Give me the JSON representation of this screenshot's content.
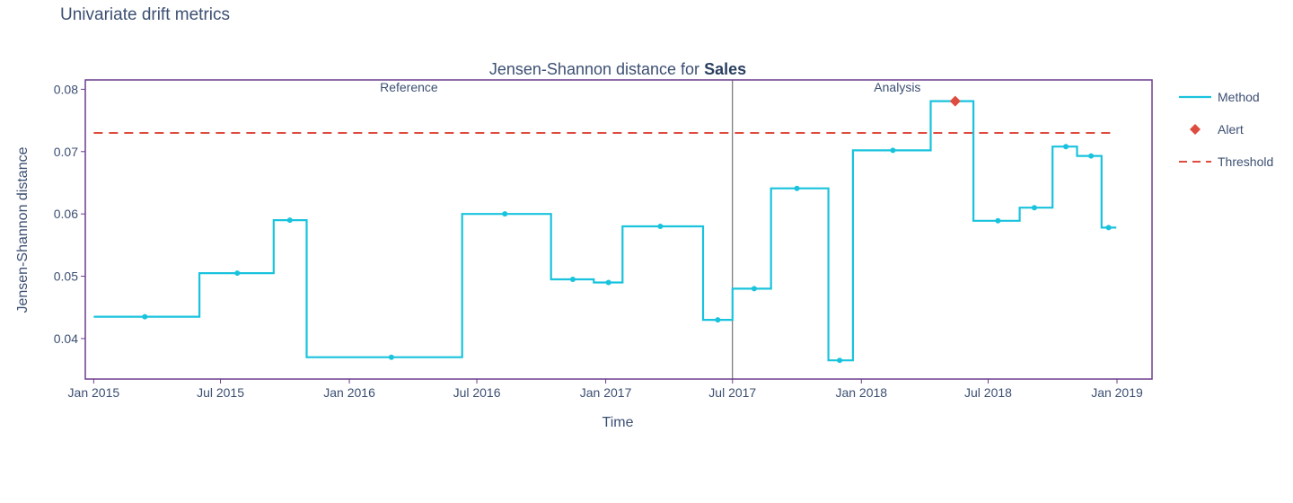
{
  "page": {
    "title": "Univariate drift metrics"
  },
  "chart_data": {
    "type": "line",
    "title_prefix": "Jensen-Shannon distance for ",
    "title_bold": "Sales",
    "xlabel": "Time",
    "ylabel": "Jensen-Shannon distance",
    "xlim": [
      "2014-12-20",
      "2019-02-20"
    ],
    "ylim": [
      0.0335,
      0.0815
    ],
    "yticks": [
      0.04,
      0.05,
      0.06,
      0.07,
      0.08
    ],
    "ytick_labels": [
      "0.04",
      "0.05",
      "0.06",
      "0.07",
      "0.08"
    ],
    "xticks": [
      "2015-01-01",
      "2015-07-01",
      "2016-01-01",
      "2016-07-01",
      "2017-01-01",
      "2017-07-01",
      "2018-01-01",
      "2018-07-01",
      "2019-01-01"
    ],
    "xtick_labels": [
      "Jan 2015",
      "Jul 2015",
      "Jan 2016",
      "Jul 2016",
      "Jan 2017",
      "Jul 2017",
      "Jan 2018",
      "Jul 2018",
      "Jan 2019"
    ],
    "grid": false,
    "legend_position": "right",
    "threshold": 0.073,
    "threshold_range": [
      "2015-01-01",
      "2018-12-31"
    ],
    "period_split": "2017-07-01",
    "period_labels": [
      "Reference",
      "Analysis"
    ],
    "series": [
      {
        "name": "Method",
        "points": [
          {
            "start": "2015-01-01",
            "end": "2015-06-01",
            "mid": "2015-03-15",
            "y": 0.0435,
            "alert": false
          },
          {
            "start": "2015-06-01",
            "end": "2015-09-15",
            "mid": "2015-07-25",
            "y": 0.0505,
            "alert": false
          },
          {
            "start": "2015-09-15",
            "end": "2015-11-01",
            "mid": "2015-10-08",
            "y": 0.059,
            "alert": false
          },
          {
            "start": "2015-11-01",
            "end": "2016-06-10",
            "mid": "2016-03-01",
            "y": 0.037,
            "alert": false
          },
          {
            "start": "2016-06-10",
            "end": "2016-10-15",
            "mid": "2016-08-10",
            "y": 0.06,
            "alert": false
          },
          {
            "start": "2016-10-15",
            "end": "2016-12-15",
            "mid": "2016-11-15",
            "y": 0.0495,
            "alert": false
          },
          {
            "start": "2016-12-15",
            "end": "2017-01-25",
            "mid": "2017-01-05",
            "y": 0.049,
            "alert": false
          },
          {
            "start": "2017-01-25",
            "end": "2017-05-20",
            "mid": "2017-03-20",
            "y": 0.058,
            "alert": false
          },
          {
            "start": "2017-05-20",
            "end": "2017-07-01",
            "mid": "2017-06-10",
            "y": 0.043,
            "alert": false
          },
          {
            "start": "2017-07-01",
            "end": "2017-08-25",
            "mid": "2017-08-01",
            "y": 0.048,
            "alert": false
          },
          {
            "start": "2017-08-25",
            "end": "2017-11-15",
            "mid": "2017-10-01",
            "y": 0.0641,
            "alert": false
          },
          {
            "start": "2017-11-15",
            "end": "2017-12-20",
            "mid": "2017-12-01",
            "y": 0.0365,
            "alert": false
          },
          {
            "start": "2017-12-20",
            "end": "2018-04-10",
            "mid": "2018-02-15",
            "y": 0.0702,
            "alert": false
          },
          {
            "start": "2018-04-10",
            "end": "2018-06-10",
            "mid": "2018-05-15",
            "y": 0.0781,
            "alert": true
          },
          {
            "start": "2018-06-10",
            "end": "2018-08-15",
            "mid": "2018-07-15",
            "y": 0.0589,
            "alert": false
          },
          {
            "start": "2018-08-15",
            "end": "2018-10-01",
            "mid": "2018-09-05",
            "y": 0.061,
            "alert": false
          },
          {
            "start": "2018-10-01",
            "end": "2018-11-05",
            "mid": "2018-10-20",
            "y": 0.0708,
            "alert": false
          },
          {
            "start": "2018-11-05",
            "end": "2018-12-10",
            "mid": "2018-11-25",
            "y": 0.0693,
            "alert": false
          },
          {
            "start": "2018-12-10",
            "end": "2018-12-31",
            "mid": "2018-12-20",
            "y": 0.0578,
            "alert": false
          }
        ]
      }
    ],
    "legend": [
      {
        "key": "method",
        "label": "Method"
      },
      {
        "key": "alert",
        "label": "Alert"
      },
      {
        "key": "threshold",
        "label": "Threshold"
      }
    ],
    "colors": {
      "method": "#19c3dd",
      "alert": "#dd4c3f",
      "threshold": "#dd4c3f",
      "frame": "#6b3d8e",
      "split": "#555555",
      "text": "#3c4f72",
      "tick": "#3c4f72"
    }
  }
}
